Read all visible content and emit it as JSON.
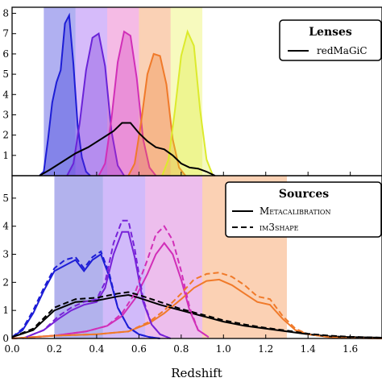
{
  "chart_data": [
    {
      "panel": "lenses",
      "type": "line",
      "xlabel": "",
      "ylabel": "",
      "xlim": [
        0.0,
        1.75
      ],
      "ylim": [
        0,
        8.3
      ],
      "yticks": [
        0,
        1,
        2,
        3,
        4,
        5,
        6,
        7,
        8
      ],
      "legend": {
        "title": "Lenses",
        "entries": [
          "redMaGiC"
        ],
        "position": "top-right"
      },
      "bins": [
        {
          "range": [
            0.15,
            0.3
          ],
          "color": "#1d1dd6"
        },
        {
          "range": [
            0.3,
            0.45
          ],
          "color": "#8a3bf0"
        },
        {
          "range": [
            0.45,
            0.6
          ],
          "color": "#e23bb5"
        },
        {
          "range": [
            0.6,
            0.75
          ],
          "color": "#f07a2a"
        },
        {
          "range": [
            0.75,
            0.9
          ],
          "color": "#e8f044"
        }
      ],
      "series": [
        {
          "style": "filled",
          "color": "#1d1dd6",
          "x": [
            0.13,
            0.15,
            0.17,
            0.19,
            0.21,
            0.23,
            0.25,
            0.27,
            0.29,
            0.31,
            0.33,
            0.35,
            0.37
          ],
          "y": [
            0,
            0.2,
            1.8,
            3.6,
            4.6,
            5.2,
            7.5,
            7.9,
            5.5,
            2.5,
            0.9,
            0.2,
            0
          ]
        },
        {
          "style": "filled",
          "color": "#6a23d8",
          "x": [
            0.26,
            0.29,
            0.32,
            0.35,
            0.38,
            0.41,
            0.44,
            0.47,
            0.5,
            0.53
          ],
          "y": [
            0,
            0.6,
            2.6,
            5.2,
            6.8,
            7.0,
            5.4,
            2.2,
            0.5,
            0
          ]
        },
        {
          "style": "filled",
          "color": "#d12fb8",
          "x": [
            0.41,
            0.44,
            0.47,
            0.5,
            0.53,
            0.56,
            0.59,
            0.62,
            0.65,
            0.68
          ],
          "y": [
            0,
            0.6,
            2.8,
            5.6,
            7.1,
            6.9,
            4.8,
            1.8,
            0.4,
            0
          ]
        },
        {
          "style": "filled",
          "color": "#f07a2a",
          "x": [
            0.55,
            0.58,
            0.61,
            0.64,
            0.67,
            0.7,
            0.73,
            0.76,
            0.79,
            0.82
          ],
          "y": [
            0,
            0.6,
            2.6,
            5.0,
            6.0,
            5.9,
            4.5,
            1.8,
            0.4,
            0
          ]
        },
        {
          "style": "filled",
          "color": "#dcea2c",
          "x": [
            0.71,
            0.74,
            0.77,
            0.8,
            0.83,
            0.86,
            0.89,
            0.92,
            0.95
          ],
          "y": [
            0,
            0.8,
            3.2,
            5.9,
            7.1,
            6.4,
            3.2,
            0.8,
            0
          ]
        },
        {
          "name": "redMaGiC",
          "style": "solid",
          "color": "#000000",
          "x": [
            0.13,
            0.18,
            0.24,
            0.3,
            0.36,
            0.42,
            0.48,
            0.52,
            0.56,
            0.6,
            0.64,
            0.68,
            0.72,
            0.76,
            0.8,
            0.84,
            0.88,
            0.92,
            0.96
          ],
          "y": [
            0,
            0.3,
            0.7,
            1.1,
            1.4,
            1.8,
            2.2,
            2.6,
            2.6,
            2.1,
            1.7,
            1.4,
            1.3,
            1.0,
            0.6,
            0.4,
            0.35,
            0.2,
            0
          ]
        }
      ]
    },
    {
      "panel": "sources",
      "type": "line",
      "xlabel": "Redshift",
      "ylabel": "",
      "xlim": [
        0.0,
        1.75
      ],
      "ylim": [
        0,
        5.8
      ],
      "yticks": [
        0,
        1,
        2,
        3,
        4,
        5
      ],
      "xticks": [
        "0.0",
        "0.2",
        "0.4",
        "0.6",
        "0.8",
        "1.0",
        "1.2",
        "1.4",
        "1.6"
      ],
      "xtick_values": [
        0.0,
        0.2,
        0.4,
        0.6,
        0.8,
        1.0,
        1.2,
        1.4,
        1.6
      ],
      "legend": {
        "title": "Sources",
        "entries": [
          "Metacalibration",
          "im3shape"
        ],
        "position": "top-right"
      },
      "bins": [
        {
          "range": [
            0.2,
            0.43
          ],
          "color": "#2222cc"
        },
        {
          "range": [
            0.43,
            0.63
          ],
          "color": "#7a3af0"
        },
        {
          "range": [
            0.63,
            0.9
          ],
          "color": "#cc44cc"
        },
        {
          "range": [
            0.9,
            1.3
          ],
          "color": "#f47c28"
        }
      ],
      "series": [
        {
          "name": "Metacalibration",
          "bin": 1,
          "style": "solid",
          "color": "#1d1dd6",
          "x": [
            0.0,
            0.05,
            0.1,
            0.15,
            0.2,
            0.25,
            0.3,
            0.34,
            0.38,
            0.42,
            0.46,
            0.5,
            0.55,
            0.6,
            0.65,
            0.7
          ],
          "y": [
            0.05,
            0.3,
            0.9,
            1.7,
            2.4,
            2.6,
            2.8,
            2.4,
            2.8,
            3.0,
            2.2,
            1.1,
            0.4,
            0.15,
            0.05,
            0.0
          ]
        },
        {
          "name": "Metacalibration",
          "bin": 2,
          "style": "solid",
          "color": "#7722d8",
          "x": [
            0.05,
            0.15,
            0.22,
            0.28,
            0.34,
            0.4,
            0.44,
            0.48,
            0.52,
            0.55,
            0.58,
            0.62,
            0.66,
            0.7,
            0.75
          ],
          "y": [
            0.0,
            0.3,
            0.7,
            1.0,
            1.2,
            1.3,
            1.8,
            3.0,
            3.8,
            3.8,
            2.9,
            1.3,
            0.5,
            0.15,
            0.0
          ]
        },
        {
          "name": "Metacalibration",
          "bin": 3,
          "style": "solid",
          "color": "#d12fb8",
          "x": [
            0.0,
            0.2,
            0.35,
            0.45,
            0.52,
            0.58,
            0.64,
            0.68,
            0.72,
            0.76,
            0.8,
            0.84,
            0.88,
            0.93
          ],
          "y": [
            0.0,
            0.1,
            0.25,
            0.45,
            0.8,
            1.4,
            2.3,
            3.0,
            3.4,
            3.0,
            2.1,
            1.0,
            0.3,
            0.05
          ]
        },
        {
          "name": "Metacalibration",
          "bin": 4,
          "style": "solid",
          "color": "#f07a2a",
          "x": [
            0.0,
            0.2,
            0.4,
            0.55,
            0.65,
            0.72,
            0.8,
            0.86,
            0.92,
            0.98,
            1.04,
            1.1,
            1.16,
            1.22,
            1.28,
            1.34,
            1.4,
            1.5,
            1.6,
            1.75
          ],
          "y": [
            0.0,
            0.1,
            0.15,
            0.25,
            0.55,
            0.9,
            1.4,
            1.8,
            2.05,
            2.1,
            1.9,
            1.6,
            1.3,
            1.2,
            0.7,
            0.3,
            0.15,
            0.05,
            0.02,
            0.0
          ]
        },
        {
          "name": "Metacalibration",
          "bin": "all",
          "style": "solid",
          "color": "#000000",
          "x": [
            0.0,
            0.1,
            0.2,
            0.3,
            0.4,
            0.5,
            0.55,
            0.6,
            0.7,
            0.8,
            0.9,
            1.0,
            1.1,
            1.2,
            1.3,
            1.4,
            1.5,
            1.6,
            1.75
          ],
          "y": [
            0.05,
            0.3,
            1.0,
            1.3,
            1.35,
            1.5,
            1.55,
            1.45,
            1.2,
            1.0,
            0.8,
            0.6,
            0.45,
            0.35,
            0.25,
            0.15,
            0.08,
            0.05,
            0.03
          ]
        },
        {
          "name": "im3shape",
          "bin": 1,
          "style": "dashed",
          "color": "#1d1dd6",
          "x": [
            0.0,
            0.05,
            0.1,
            0.15,
            0.2,
            0.25,
            0.3,
            0.34,
            0.38,
            0.42,
            0.46,
            0.5,
            0.55,
            0.6,
            0.65,
            0.7
          ],
          "y": [
            0.05,
            0.35,
            1.0,
            1.8,
            2.5,
            2.8,
            2.9,
            2.5,
            2.9,
            3.1,
            2.3,
            1.1,
            0.4,
            0.15,
            0.05,
            0.0
          ]
        },
        {
          "name": "im3shape",
          "bin": 2,
          "style": "dashed",
          "color": "#7722d8",
          "x": [
            0.05,
            0.15,
            0.22,
            0.28,
            0.34,
            0.4,
            0.44,
            0.48,
            0.52,
            0.55,
            0.58,
            0.62,
            0.66,
            0.7,
            0.75
          ],
          "y": [
            0.0,
            0.3,
            0.8,
            1.1,
            1.3,
            1.4,
            2.0,
            3.4,
            4.2,
            4.2,
            3.2,
            1.4,
            0.5,
            0.15,
            0.0
          ]
        },
        {
          "name": "im3shape",
          "bin": 3,
          "style": "dashed",
          "color": "#d12fb8",
          "x": [
            0.0,
            0.2,
            0.35,
            0.45,
            0.52,
            0.58,
            0.64,
            0.68,
            0.72,
            0.76,
            0.8,
            0.84,
            0.88,
            0.93
          ],
          "y": [
            0.0,
            0.1,
            0.25,
            0.45,
            0.9,
            1.6,
            2.8,
            3.7,
            4.0,
            3.5,
            2.4,
            1.1,
            0.3,
            0.05
          ]
        },
        {
          "name": "im3shape",
          "bin": 4,
          "style": "dashed",
          "color": "#f07a2a",
          "x": [
            0.0,
            0.2,
            0.4,
            0.55,
            0.65,
            0.72,
            0.8,
            0.86,
            0.92,
            0.98,
            1.04,
            1.1,
            1.16,
            1.22,
            1.28,
            1.34,
            1.4,
            1.5,
            1.6,
            1.75
          ],
          "y": [
            0.0,
            0.1,
            0.15,
            0.25,
            0.6,
            1.0,
            1.6,
            2.1,
            2.3,
            2.35,
            2.2,
            1.9,
            1.5,
            1.4,
            0.8,
            0.35,
            0.15,
            0.05,
            0.02,
            0.0
          ]
        },
        {
          "name": "im3shape",
          "bin": "all",
          "style": "dashed",
          "color": "#000000",
          "x": [
            0.0,
            0.1,
            0.2,
            0.3,
            0.4,
            0.5,
            0.55,
            0.6,
            0.7,
            0.8,
            0.9,
            1.0,
            1.1,
            1.2,
            1.3,
            1.4,
            1.5,
            1.6,
            1.75
          ],
          "y": [
            0.05,
            0.35,
            1.1,
            1.4,
            1.45,
            1.6,
            1.65,
            1.55,
            1.3,
            1.05,
            0.85,
            0.65,
            0.5,
            0.38,
            0.28,
            0.17,
            0.1,
            0.06,
            0.03
          ]
        }
      ]
    }
  ]
}
